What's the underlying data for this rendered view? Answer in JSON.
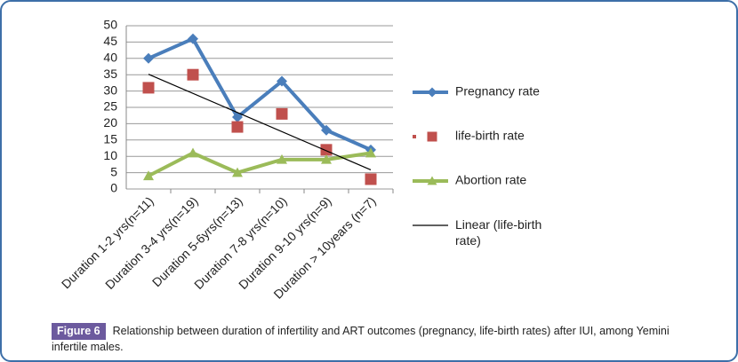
{
  "chart_data": {
    "type": "line",
    "categories": [
      "Duration 1-2 yrs(n=11)",
      "Duration 3-4 yrs(n=19)",
      "Duration 5-6yrs(n=13)",
      "Duration 7-8 yrs(n=10)",
      "Duration 9-10 yrs(n=9)",
      "Duration > 10years (n=7)"
    ],
    "series": [
      {
        "name": "Pregnancy rate",
        "color": "#4a7ebb",
        "marker": "diamond",
        "line": true,
        "values": [
          40,
          46,
          22,
          33,
          18,
          12
        ]
      },
      {
        "name": "life-birth rate",
        "color": "#c0504d",
        "marker": "square",
        "line": false,
        "values": [
          31,
          35,
          19,
          23,
          12,
          3
        ]
      },
      {
        "name": "Abortion rate",
        "color": "#9bbb59",
        "marker": "triangle",
        "line": true,
        "values": [
          4,
          11,
          5,
          9,
          9,
          11
        ]
      },
      {
        "name": "Linear (life-birth rate)",
        "color": "#000000",
        "trend": "linear"
      }
    ],
    "ylim": [
      0,
      50
    ],
    "yticks": [
      0,
      5,
      10,
      15,
      20,
      25,
      30,
      35,
      40,
      45,
      50
    ],
    "grid": true,
    "legend": "right",
    "figure_label": "Figure 6",
    "caption": "Relationship between duration of infertility and ART outcomes (pregnancy, life-birth rates) after IUI, among Yemini infertile males."
  }
}
